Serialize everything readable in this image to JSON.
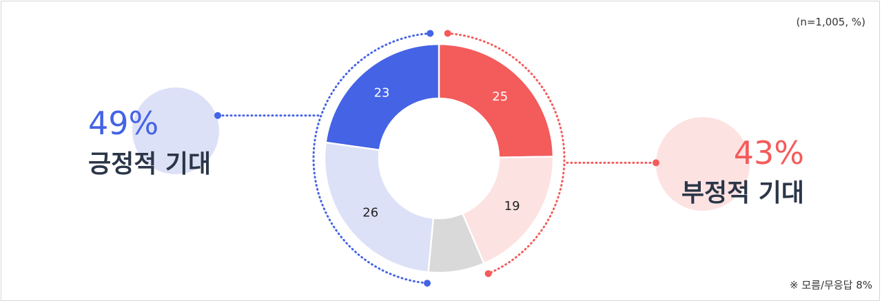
{
  "sample_note": "(n=1,005, %)",
  "dont_know_note": "※ 모름/무응답 8%",
  "positive": {
    "percent": "49%",
    "label": "긍정적 기대"
  },
  "negative": {
    "percent": "43%",
    "label": "부정적 기대"
  },
  "colors": {
    "positive_dark": "#4463e5",
    "positive_light": "#dde1f7",
    "negative_dark": "#f45b5b",
    "negative_light": "#fde2e2",
    "neutral": "#d9d9d9",
    "sub_text": "#2b3648"
  },
  "chart_data": {
    "type": "pie",
    "donut": true,
    "unit": "%",
    "slices": [
      {
        "value": 25,
        "label": "25",
        "color": "#f45b5b",
        "label_color": "#ffffff",
        "group": "negative"
      },
      {
        "value": 19,
        "label": "19",
        "color": "#fde2e2",
        "label_color": "#222222",
        "group": "negative"
      },
      {
        "value": 8,
        "label": "",
        "color": "#d9d9d9",
        "label_color": "#222222",
        "group": "none"
      },
      {
        "value": 26,
        "label": "26",
        "color": "#dde1f7",
        "label_color": "#222222",
        "group": "positive"
      },
      {
        "value": 23,
        "label": "23",
        "color": "#4463e5",
        "label_color": "#ffffff",
        "group": "positive"
      }
    ],
    "groups": [
      {
        "label": "긍정적 기대",
        "total": 49
      },
      {
        "label": "부정적 기대",
        "total": 43
      },
      {
        "label": "모름/무응답",
        "total": 8
      }
    ]
  }
}
